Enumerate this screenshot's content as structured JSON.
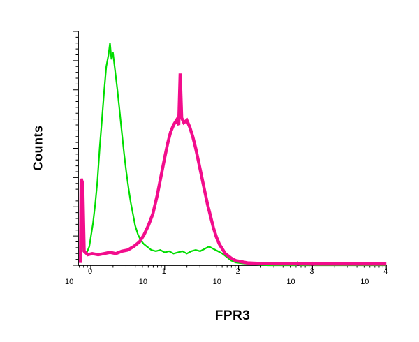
{
  "figure": {
    "background": "#ffffff",
    "axis_color": "#000000"
  },
  "chart_data": {
    "type": "line",
    "subtype": "flow-cytometry-histogram-overlay",
    "title": "",
    "xlabel": "FPR3",
    "ylabel": "Counts",
    "x_scale": "log10",
    "x_decade_range": [
      0,
      4
    ],
    "x_tick_base": "10",
    "x_tick_exponents": [
      "0",
      "1",
      "2",
      "3",
      "4"
    ],
    "y_tick_labels": [],
    "grid": false,
    "legend": "none",
    "series": [
      {
        "name": "green-histogram",
        "color": "#00dd00",
        "stroke_width": 2.2,
        "points": [
          [
            -0.14,
            0.02
          ],
          [
            -0.12,
            0.24
          ],
          [
            -0.1,
            0.06
          ],
          [
            -0.06,
            0.05
          ],
          [
            -0.02,
            0.08
          ],
          [
            0.0,
            0.12
          ],
          [
            0.03,
            0.18
          ],
          [
            0.06,
            0.26
          ],
          [
            0.09,
            0.36
          ],
          [
            0.12,
            0.5
          ],
          [
            0.15,
            0.62
          ],
          [
            0.18,
            0.74
          ],
          [
            0.21,
            0.85
          ],
          [
            0.24,
            0.9
          ],
          [
            0.26,
            0.95
          ],
          [
            0.28,
            0.88
          ],
          [
            0.3,
            0.91
          ],
          [
            0.33,
            0.83
          ],
          [
            0.36,
            0.75
          ],
          [
            0.39,
            0.66
          ],
          [
            0.42,
            0.57
          ],
          [
            0.45,
            0.48
          ],
          [
            0.48,
            0.4
          ],
          [
            0.51,
            0.33
          ],
          [
            0.54,
            0.27
          ],
          [
            0.57,
            0.22
          ],
          [
            0.6,
            0.17
          ],
          [
            0.64,
            0.13
          ],
          [
            0.68,
            0.105
          ],
          [
            0.72,
            0.09
          ],
          [
            0.76,
            0.08
          ],
          [
            0.82,
            0.065
          ],
          [
            0.88,
            0.06
          ],
          [
            0.94,
            0.065
          ],
          [
            1.0,
            0.055
          ],
          [
            1.06,
            0.06
          ],
          [
            1.12,
            0.05
          ],
          [
            1.18,
            0.055
          ],
          [
            1.24,
            0.06
          ],
          [
            1.3,
            0.05
          ],
          [
            1.36,
            0.06
          ],
          [
            1.42,
            0.065
          ],
          [
            1.48,
            0.06
          ],
          [
            1.54,
            0.07
          ],
          [
            1.6,
            0.08
          ],
          [
            1.66,
            0.07
          ],
          [
            1.72,
            0.06
          ],
          [
            1.78,
            0.05
          ],
          [
            1.84,
            0.035
          ],
          [
            1.9,
            0.02
          ],
          [
            1.96,
            0.012
          ],
          [
            2.05,
            0.008
          ],
          [
            2.2,
            0.004
          ],
          [
            2.4,
            0.0
          ],
          [
            2.78,
            0.0
          ],
          [
            2.8,
            0.012
          ],
          [
            2.83,
            0.0
          ],
          [
            2.98,
            0.0
          ],
          [
            3.0,
            0.01
          ],
          [
            3.03,
            0.0
          ],
          [
            4.0,
            0.0
          ]
        ]
      },
      {
        "name": "magenta-histogram",
        "color": "#f20d8c",
        "stroke_width": 4.5,
        "points": [
          [
            -0.14,
            0.01
          ],
          [
            -0.13,
            0.37
          ],
          [
            -0.11,
            0.35
          ],
          [
            -0.09,
            0.06
          ],
          [
            -0.04,
            0.045
          ],
          [
            0.02,
            0.05
          ],
          [
            0.1,
            0.045
          ],
          [
            0.18,
            0.05
          ],
          [
            0.26,
            0.055
          ],
          [
            0.34,
            0.05
          ],
          [
            0.42,
            0.06
          ],
          [
            0.5,
            0.065
          ],
          [
            0.58,
            0.08
          ],
          [
            0.66,
            0.1
          ],
          [
            0.72,
            0.13
          ],
          [
            0.78,
            0.17
          ],
          [
            0.84,
            0.22
          ],
          [
            0.9,
            0.3
          ],
          [
            0.95,
            0.38
          ],
          [
            1.0,
            0.46
          ],
          [
            1.04,
            0.52
          ],
          [
            1.08,
            0.57
          ],
          [
            1.12,
            0.6
          ],
          [
            1.16,
            0.62
          ],
          [
            1.19,
            0.6
          ],
          [
            1.21,
            0.82
          ],
          [
            1.23,
            0.63
          ],
          [
            1.26,
            0.61
          ],
          [
            1.3,
            0.62
          ],
          [
            1.34,
            0.59
          ],
          [
            1.38,
            0.55
          ],
          [
            1.42,
            0.5
          ],
          [
            1.46,
            0.44
          ],
          [
            1.5,
            0.38
          ],
          [
            1.54,
            0.32
          ],
          [
            1.58,
            0.26
          ],
          [
            1.62,
            0.21
          ],
          [
            1.66,
            0.16
          ],
          [
            1.7,
            0.12
          ],
          [
            1.74,
            0.09
          ],
          [
            1.78,
            0.07
          ],
          [
            1.82,
            0.05
          ],
          [
            1.86,
            0.04
          ],
          [
            1.9,
            0.03
          ],
          [
            1.96,
            0.02
          ],
          [
            2.04,
            0.015
          ],
          [
            2.12,
            0.01
          ],
          [
            2.25,
            0.008
          ],
          [
            2.5,
            0.006
          ],
          [
            2.8,
            0.006
          ],
          [
            3.1,
            0.005
          ],
          [
            3.5,
            0.005
          ],
          [
            4.0,
            0.005
          ]
        ]
      }
    ]
  }
}
